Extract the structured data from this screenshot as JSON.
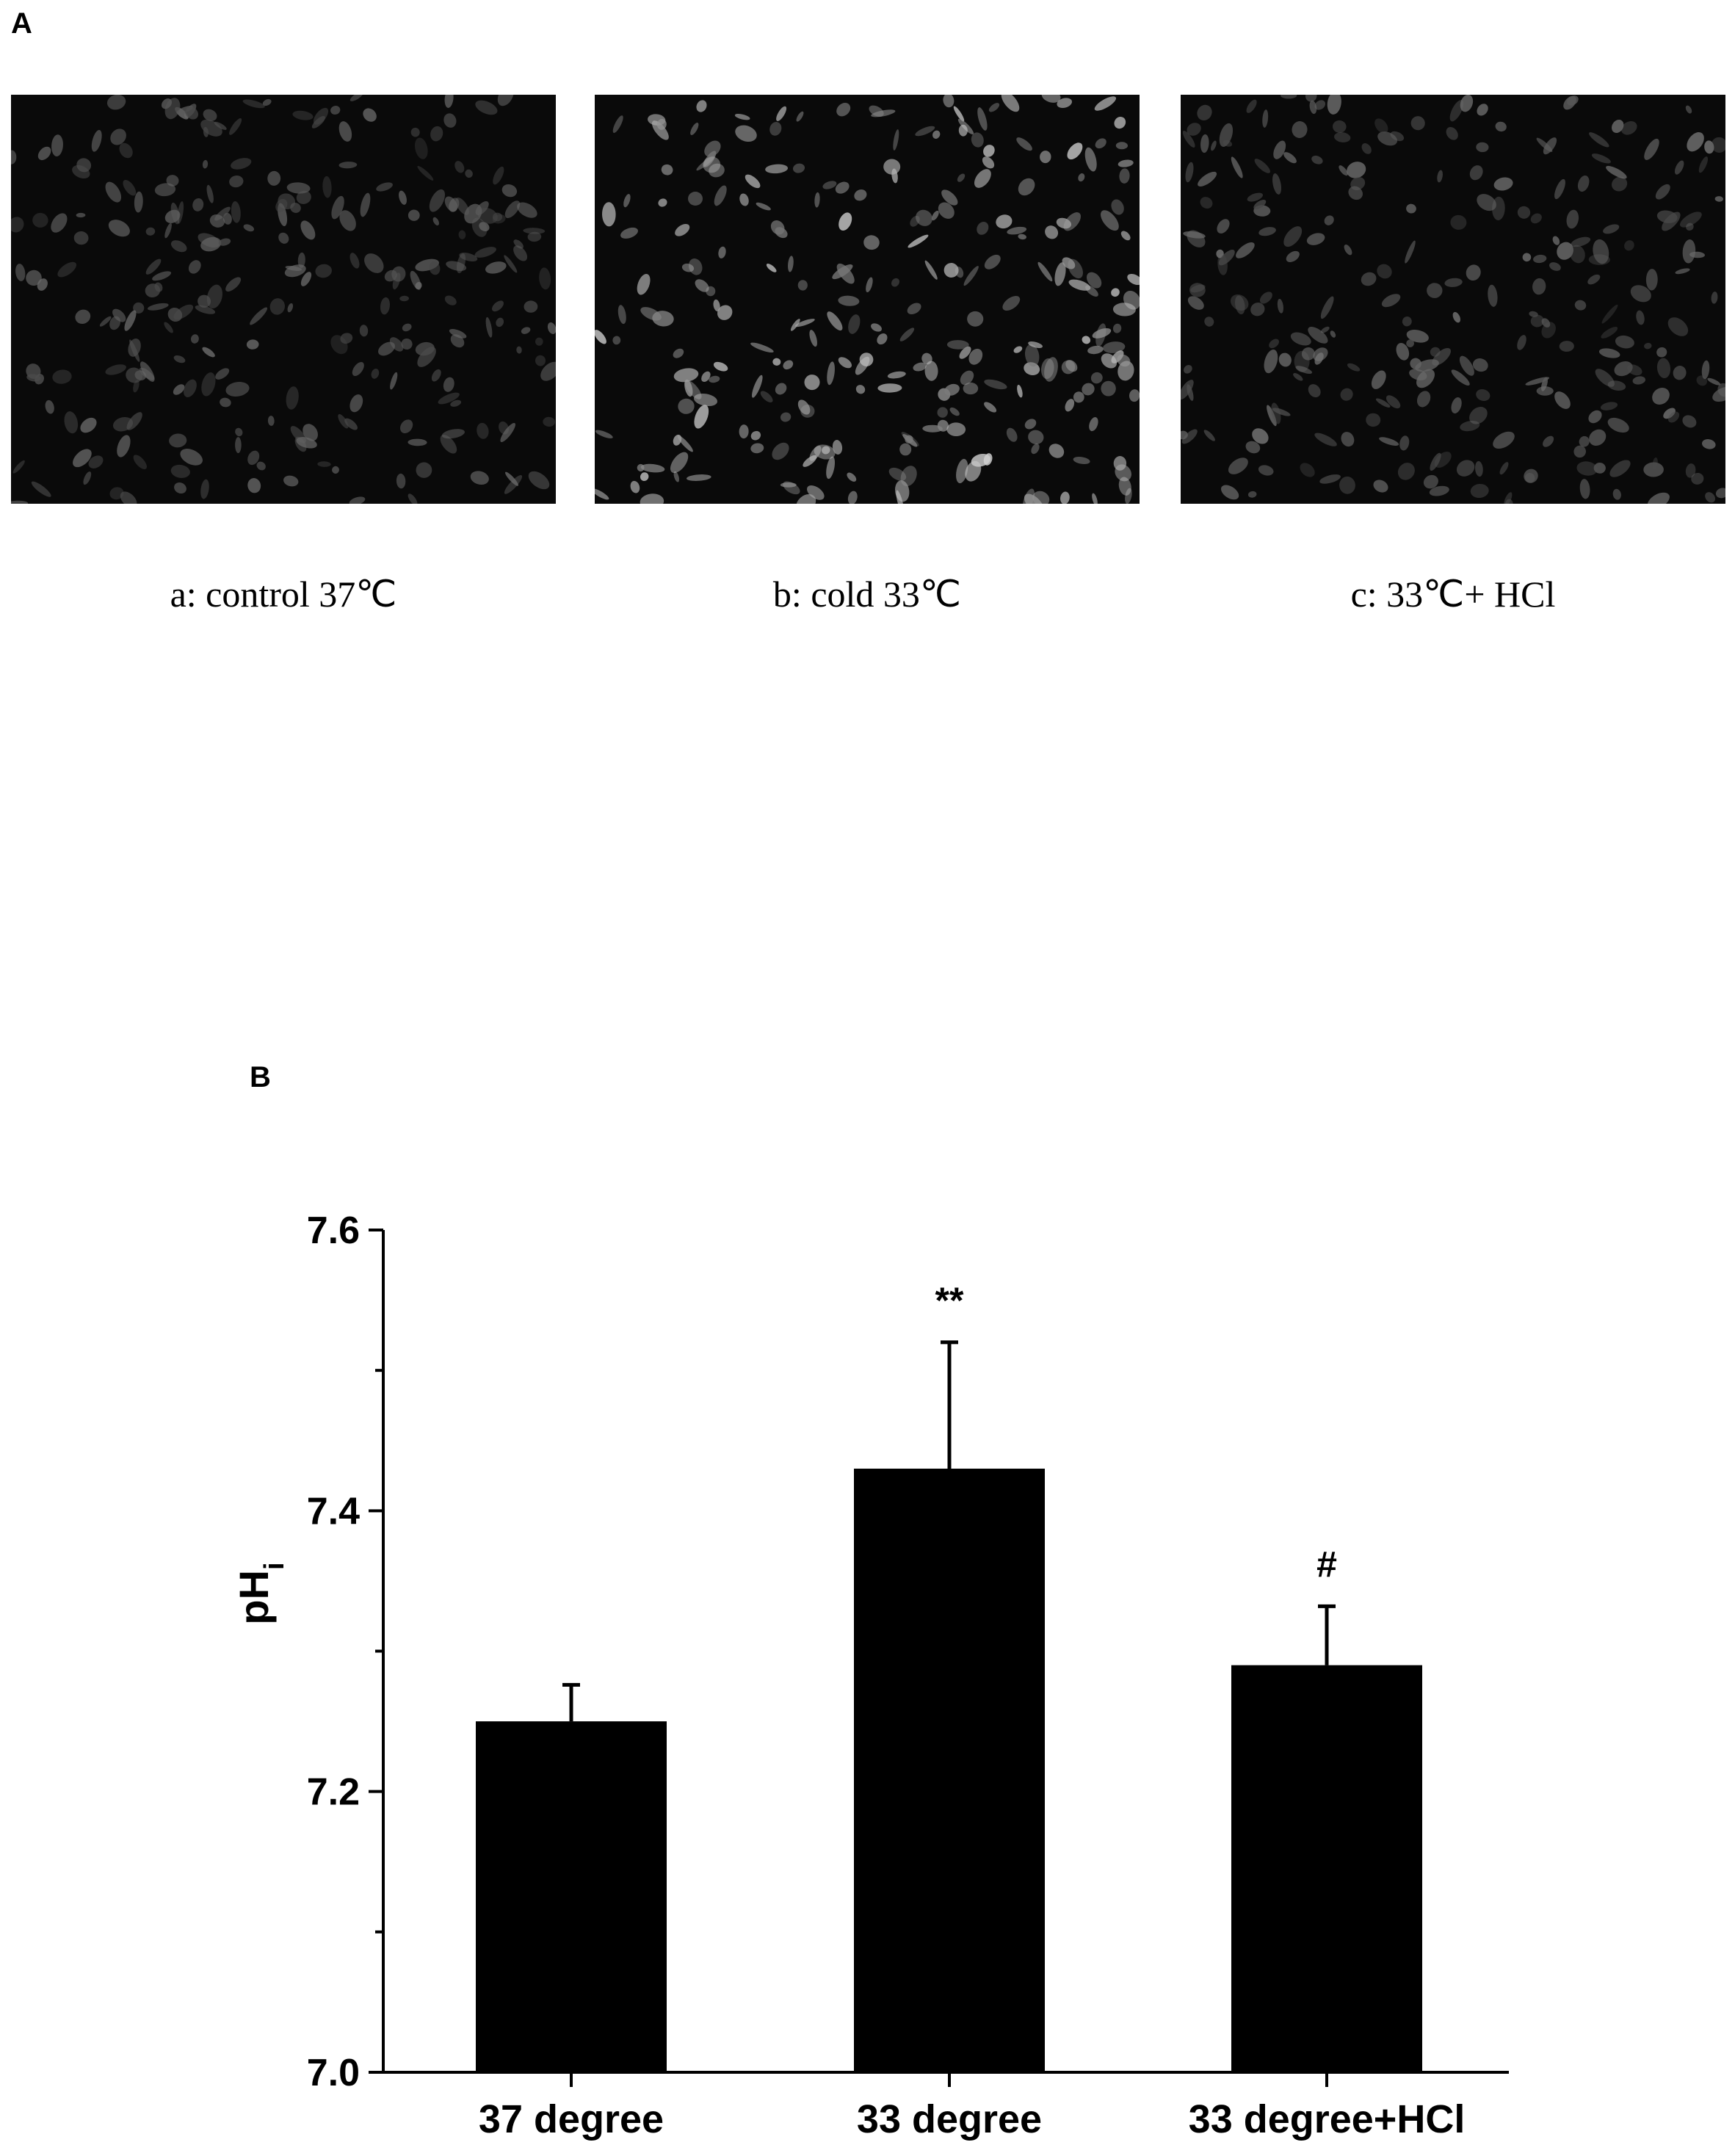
{
  "panel_a": {
    "letter": "A",
    "images": [
      {
        "caption": "a: control 37℃",
        "brightness": 0.35
      },
      {
        "caption": "b: cold 33℃",
        "brightness": 0.85
      },
      {
        "caption": "c: 33℃+ HCl",
        "brightness": 0.4
      }
    ]
  },
  "panel_b": {
    "letter": "B"
  },
  "chart_data": {
    "type": "bar",
    "categories": [
      "37 degree",
      "33 degree",
      "33 degree+HCl"
    ],
    "values": [
      7.25,
      7.43,
      7.29
    ],
    "errors": [
      0.026,
      0.09,
      0.042
    ],
    "annotations": [
      "",
      "**",
      "#"
    ],
    "ylabel": "pH",
    "ylabel_subscript": "i",
    "ylim": [
      7.0,
      7.6
    ],
    "yticks": [
      "7.0",
      "7.2",
      "7.4",
      "7.6"
    ],
    "yticks_values": [
      7.0,
      7.2,
      7.4,
      7.6
    ],
    "bar_color": "#000000",
    "grid": false,
    "legend": "none"
  }
}
